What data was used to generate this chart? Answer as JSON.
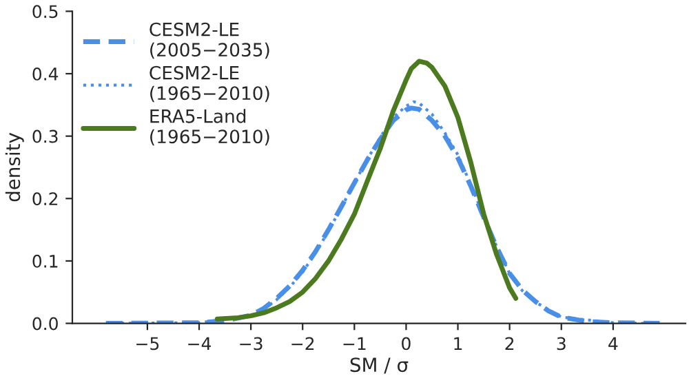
{
  "chart_data": {
    "type": "line",
    "xlabel": "SM / σ",
    "ylabel": "density",
    "xlim": [
      -6.45,
      5.4
    ],
    "ylim": [
      0,
      0.5
    ],
    "xticks": [
      {
        "value": -5,
        "label": "−5"
      },
      {
        "value": -4,
        "label": "−4"
      },
      {
        "value": -3,
        "label": "−3"
      },
      {
        "value": -2,
        "label": "−2"
      },
      {
        "value": -1,
        "label": "−1"
      },
      0,
      1,
      2,
      3,
      4
    ],
    "yticks": [
      {
        "value": 0,
        "label": "0.0"
      },
      {
        "value": 0.1,
        "label": "0.1"
      },
      {
        "value": 0.2,
        "label": "0.2"
      },
      {
        "value": 0.3,
        "label": "0.3"
      },
      {
        "value": 0.4,
        "label": "0.4"
      },
      {
        "value": 0.5,
        "label": "0.5"
      }
    ],
    "grid": false,
    "legend": "top left",
    "marker": "none",
    "series": [
      {
        "name": "CESM2-LE\n(2005−2035)",
        "color": "#4a8fe7",
        "line_style": "dashed",
        "x": [
          -5.8,
          -4,
          -3.5,
          -3,
          -2.75,
          -2.5,
          -2.25,
          -2,
          -1.75,
          -1.5,
          -1.25,
          -1,
          -0.75,
          -0.5,
          -0.25,
          0,
          0.1,
          0.25,
          0.5,
          0.75,
          1,
          1.25,
          1.5,
          1.75,
          2,
          2.25,
          2.5,
          2.75,
          3,
          3.5,
          4,
          4.9
        ],
        "values": [
          0,
          0.001,
          0.004,
          0.013,
          0.024,
          0.04,
          0.06,
          0.085,
          0.115,
          0.15,
          0.187,
          0.225,
          0.262,
          0.295,
          0.325,
          0.342,
          0.345,
          0.343,
          0.325,
          0.3,
          0.265,
          0.22,
          0.17,
          0.122,
          0.08,
          0.053,
          0.035,
          0.02,
          0.01,
          0.003,
          0.001,
          0
        ]
      },
      {
        "name": "CESM2-LE\n(1965−2010)",
        "color": "#4a8fe7",
        "line_style": "dotted",
        "x": [
          -5.8,
          -4,
          -3,
          -2.75,
          -2.5,
          -2.25,
          -2,
          -1.75,
          -1.5,
          -1.25,
          -1,
          -0.75,
          -0.5,
          -0.25,
          0,
          0.15,
          0.25,
          0.5,
          0.75,
          1,
          1.25,
          1.5,
          1.75,
          2,
          2.25,
          2.5,
          3,
          4,
          4.6
        ],
        "values": [
          0,
          0.001,
          0.012,
          0.023,
          0.038,
          0.058,
          0.082,
          0.113,
          0.148,
          0.186,
          0.225,
          0.263,
          0.298,
          0.33,
          0.348,
          0.355,
          0.353,
          0.335,
          0.305,
          0.27,
          0.222,
          0.172,
          0.123,
          0.08,
          0.052,
          0.034,
          0.01,
          0.001,
          0
        ]
      },
      {
        "name": "ERA5-Land\n(1965−2010)",
        "color": "#4b7a1f",
        "line_style": "solid",
        "x": [
          -3.65,
          -3.25,
          -3,
          -2.75,
          -2.5,
          -2.25,
          -2,
          -1.75,
          -1.5,
          -1.25,
          -1,
          -0.75,
          -0.5,
          -0.25,
          0,
          0.1,
          0.25,
          0.4,
          0.5,
          0.75,
          1,
          1.25,
          1.5,
          1.75,
          2,
          2.12
        ],
        "values": [
          0.007,
          0.009,
          0.012,
          0.017,
          0.025,
          0.035,
          0.05,
          0.072,
          0.1,
          0.135,
          0.175,
          0.228,
          0.28,
          0.34,
          0.39,
          0.408,
          0.42,
          0.417,
          0.41,
          0.38,
          0.33,
          0.258,
          0.175,
          0.11,
          0.057,
          0.04
        ]
      }
    ]
  }
}
